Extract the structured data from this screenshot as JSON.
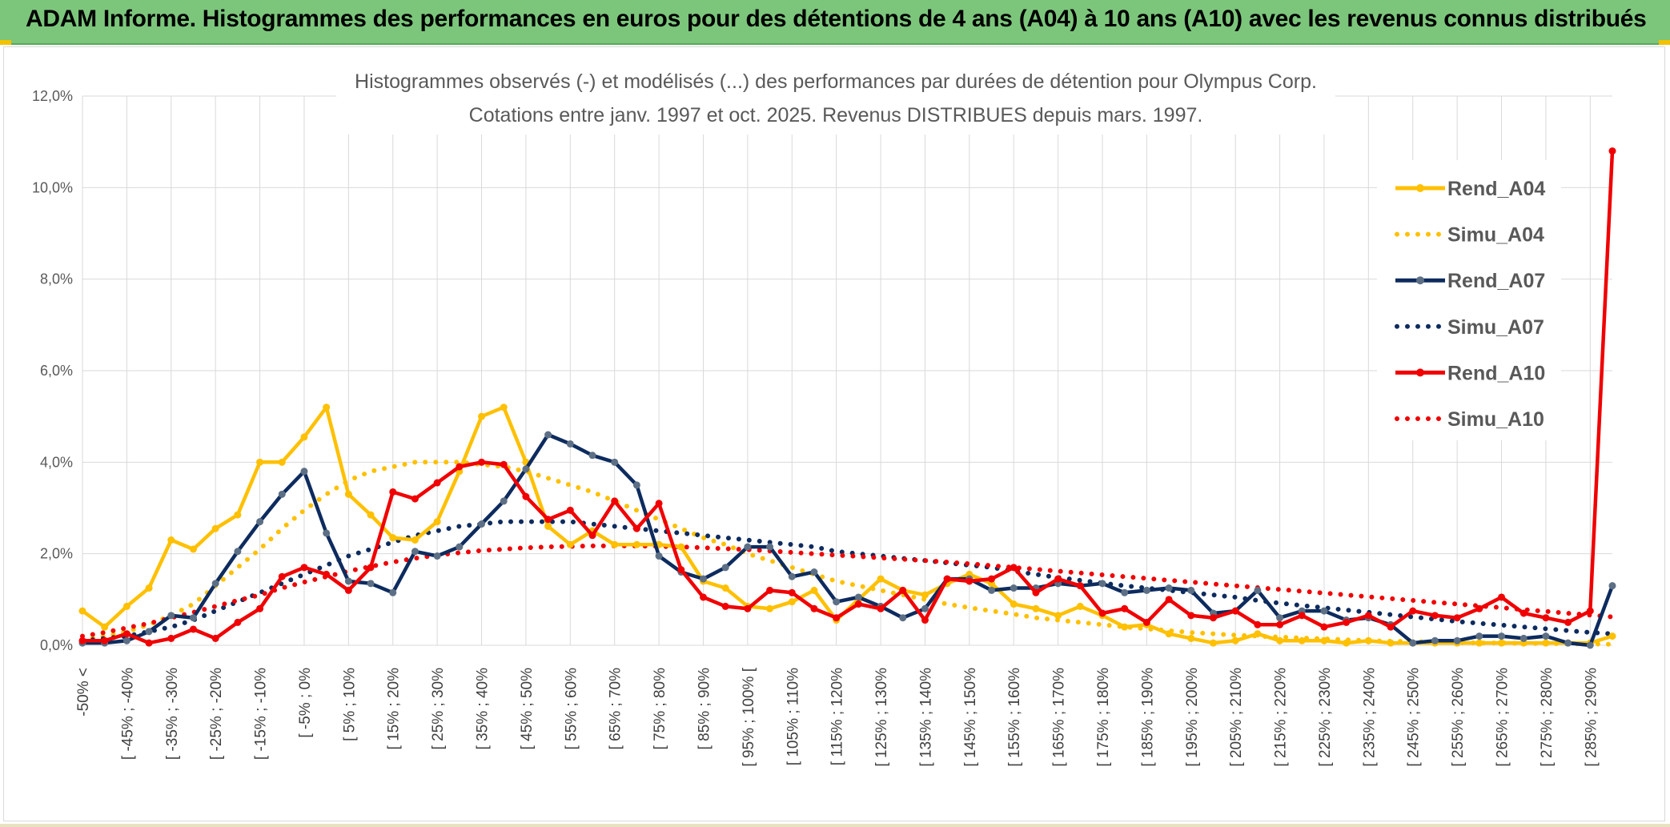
{
  "header": {
    "banner_title": "ADAM Informe. Histogrammes des performances en euros pour des détentions de 4 ans (A04) à 10 ans (A10) avec les revenus connus distribués"
  },
  "colors": {
    "banner": "#7cc67c",
    "A04": "#ffc000",
    "A07": "#0d2b5e",
    "A07_marker": "#5c6f85",
    "A10": "#f00000"
  },
  "chart_data": {
    "type": "line",
    "title_line1": "Histogrammes observés (-) et modélisés (...) des performances par durées de détention pour Olympus Corp.",
    "title_line2": "Cotations entre janv. 1997 et oct. 2025. Revenus DISTRIBUES depuis mars. 1997.",
    "ylim": [
      0,
      12
    ],
    "ytick_values": [
      0,
      2,
      4,
      6,
      8,
      10,
      12
    ],
    "ytick_labels": [
      "0,0%",
      "2,0%",
      "4,0%",
      "6,0%",
      "8,0%",
      "10,0%",
      "12,0%"
    ],
    "x_count": 70,
    "xtick_labels": [
      "-50% <",
      "[ -45% ; -40%",
      "[ -35% ; -30%",
      "[ -25% ; -20%",
      "[ -15% ; -10%",
      "[ -5% ; 0%",
      "[ 5% ; 10%",
      "[ 15% ; 20%",
      "[ 25% ; 30%",
      "[ 35% ; 40%",
      "[ 45% ; 50%",
      "[ 55% ; 60%",
      "[ 65% ; 70%",
      "[ 75% ; 80%",
      "[ 85% ; 90%",
      "[ 95% ; 100% [",
      "[ 105% ; 110%",
      "[ 115% ; 120%",
      "[ 125% ; 130%",
      "[ 135% ; 140%",
      "[ 145% ; 150%",
      "[ 155% ; 160%",
      "[ 165% ; 170%",
      "[ 175% ; 180%",
      "[ 185% ; 190%",
      "[ 195% ; 200%",
      "[ 205% ; 210%",
      "[ 215% ; 220%",
      "[ 225% ; 230%",
      "[ 235% ; 240%",
      "[ 245% ; 250%",
      "[ 255% ; 260%",
      "[ 265% ; 270%",
      "[ 275% ; 280%",
      "[ 285% ; 290%"
    ],
    "legend_position": "right",
    "series": [
      {
        "name": "Rend_A04",
        "style": "solid",
        "color": "#ffc000",
        "values": [
          0.75,
          0.4,
          0.85,
          1.25,
          2.3,
          2.1,
          2.55,
          2.85,
          4.0,
          4.0,
          4.55,
          5.2,
          3.3,
          2.85,
          2.35,
          2.3,
          2.7,
          3.8,
          5.0,
          5.2,
          4.0,
          2.6,
          2.2,
          2.5,
          2.2,
          2.2,
          2.2,
          2.15,
          1.4,
          1.25,
          0.85,
          0.8,
          0.95,
          1.2,
          0.55,
          1.0,
          1.45,
          1.2,
          1.1,
          1.35,
          1.55,
          1.35,
          0.9,
          0.8,
          0.65,
          0.85,
          0.65,
          0.4,
          0.45,
          0.25,
          0.15,
          0.05,
          0.1,
          0.25,
          0.1,
          0.1,
          0.1,
          0.05,
          0.1,
          0.05,
          0.05,
          0.05,
          0.05,
          0.05,
          0.05,
          0.05,
          0.05,
          0.05,
          0.05,
          0.2
        ]
      },
      {
        "name": "Simu_A04",
        "style": "dotted",
        "color": "#ffc000",
        "values": [
          0.12,
          0.2,
          0.3,
          0.45,
          0.65,
          0.9,
          1.3,
          1.7,
          2.1,
          2.55,
          2.95,
          3.3,
          3.6,
          3.8,
          3.9,
          4.0,
          4.0,
          4.0,
          3.95,
          3.9,
          3.8,
          3.65,
          3.5,
          3.35,
          3.15,
          2.95,
          2.75,
          2.55,
          2.35,
          2.2,
          2.0,
          1.85,
          1.7,
          1.55,
          1.4,
          1.3,
          1.2,
          1.1,
          1.0,
          0.9,
          0.82,
          0.75,
          0.68,
          0.6,
          0.55,
          0.5,
          0.45,
          0.4,
          0.36,
          0.32,
          0.28,
          0.25,
          0.22,
          0.2,
          0.18,
          0.16,
          0.14,
          0.12,
          0.1,
          0.09,
          0.08,
          0.07,
          0.06,
          0.05,
          0.05,
          0.04,
          0.04,
          0.03,
          0.03,
          0.02
        ]
      },
      {
        "name": "Rend_A07",
        "style": "solid",
        "color": "#0d2b5e",
        "values": [
          0.05,
          0.05,
          0.1,
          0.3,
          0.65,
          0.6,
          1.35,
          2.05,
          2.7,
          3.3,
          3.8,
          2.45,
          1.4,
          1.35,
          1.15,
          2.05,
          1.95,
          2.15,
          2.65,
          3.15,
          3.85,
          4.6,
          4.4,
          4.15,
          4.0,
          3.5,
          1.95,
          1.6,
          1.45,
          1.7,
          2.15,
          2.15,
          1.5,
          1.6,
          0.95,
          1.05,
          0.85,
          0.6,
          0.8,
          1.45,
          1.45,
          1.2,
          1.25,
          1.25,
          1.35,
          1.3,
          1.35,
          1.15,
          1.2,
          1.25,
          1.2,
          0.7,
          0.75,
          1.2,
          0.6,
          0.75,
          0.75,
          0.55,
          0.6,
          0.45,
          0.05,
          0.1,
          0.1,
          0.2,
          0.2,
          0.15,
          0.2,
          0.05,
          0.0,
          1.3
        ]
      },
      {
        "name": "Simu_A07",
        "style": "dotted",
        "color": "#0d2b5e",
        "values": [
          0.1,
          0.15,
          0.2,
          0.3,
          0.4,
          0.55,
          0.75,
          0.95,
          1.15,
          1.35,
          1.55,
          1.75,
          1.95,
          2.1,
          2.25,
          2.4,
          2.5,
          2.6,
          2.65,
          2.7,
          2.7,
          2.7,
          2.7,
          2.65,
          2.6,
          2.55,
          2.5,
          2.45,
          2.4,
          2.35,
          2.3,
          2.25,
          2.2,
          2.15,
          2.05,
          2.0,
          1.95,
          1.9,
          1.85,
          1.8,
          1.75,
          1.7,
          1.62,
          1.55,
          1.48,
          1.42,
          1.36,
          1.3,
          1.25,
          1.2,
          1.15,
          1.1,
          1.05,
          0.98,
          0.92,
          0.87,
          0.82,
          0.77,
          0.72,
          0.67,
          0.62,
          0.57,
          0.52,
          0.48,
          0.44,
          0.4,
          0.36,
          0.32,
          0.28,
          0.25
        ]
      },
      {
        "name": "Rend_A10",
        "style": "solid",
        "color": "#f00000",
        "values": [
          0.1,
          0.1,
          0.25,
          0.05,
          0.15,
          0.35,
          0.15,
          0.5,
          0.8,
          1.5,
          1.7,
          1.55,
          1.2,
          1.7,
          3.35,
          3.2,
          3.55,
          3.9,
          4.0,
          3.95,
          3.25,
          2.75,
          2.95,
          2.4,
          3.15,
          2.55,
          3.1,
          1.65,
          1.05,
          0.85,
          0.8,
          1.2,
          1.15,
          0.8,
          0.6,
          0.9,
          0.8,
          1.2,
          0.55,
          1.45,
          1.4,
          1.45,
          1.7,
          1.15,
          1.45,
          1.3,
          0.7,
          0.8,
          0.5,
          1.0,
          0.65,
          0.6,
          0.75,
          0.45,
          0.45,
          0.65,
          0.4,
          0.5,
          0.65,
          0.4,
          0.75,
          0.65,
          0.6,
          0.8,
          1.05,
          0.7,
          0.6,
          0.5,
          0.75,
          10.8
        ]
      },
      {
        "name": "Simu_A10",
        "style": "dotted",
        "color": "#f00000",
        "values": [
          0.2,
          0.28,
          0.38,
          0.48,
          0.6,
          0.72,
          0.85,
          0.98,
          1.1,
          1.25,
          1.38,
          1.5,
          1.62,
          1.72,
          1.82,
          1.9,
          1.97,
          2.02,
          2.07,
          2.1,
          2.13,
          2.15,
          2.16,
          2.17,
          2.17,
          2.17,
          2.16,
          2.15,
          2.13,
          2.11,
          2.09,
          2.06,
          2.03,
          2.0,
          1.97,
          1.94,
          1.91,
          1.88,
          1.85,
          1.82,
          1.78,
          1.74,
          1.7,
          1.66,
          1.62,
          1.58,
          1.54,
          1.5,
          1.46,
          1.42,
          1.38,
          1.34,
          1.3,
          1.26,
          1.22,
          1.18,
          1.14,
          1.1,
          1.06,
          1.02,
          0.98,
          0.94,
          0.9,
          0.86,
          0.82,
          0.78,
          0.74,
          0.7,
          0.66,
          0.62
        ]
      }
    ]
  }
}
